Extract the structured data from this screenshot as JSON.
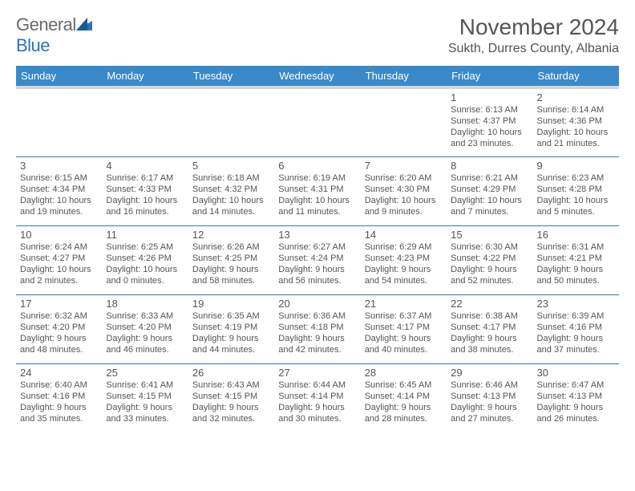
{
  "logo": {
    "word1": "General",
    "word2": "Blue"
  },
  "title": "November 2024",
  "location": "Sukth, Durres County, Albania",
  "day_headers": [
    "Sunday",
    "Monday",
    "Tuesday",
    "Wednesday",
    "Thursday",
    "Friday",
    "Saturday"
  ],
  "colors": {
    "header_bg": "#3a89c9",
    "header_sep": "#d6d6d6",
    "row_border": "#3a76a8",
    "text": "#555555",
    "logo_gray": "#6a6a6a",
    "logo_blue": "#2d73b8"
  },
  "weeks": [
    [
      {
        "num": "",
        "sunrise": "",
        "sunset": "",
        "daylight": ""
      },
      {
        "num": "",
        "sunrise": "",
        "sunset": "",
        "daylight": ""
      },
      {
        "num": "",
        "sunrise": "",
        "sunset": "",
        "daylight": ""
      },
      {
        "num": "",
        "sunrise": "",
        "sunset": "",
        "daylight": ""
      },
      {
        "num": "",
        "sunrise": "",
        "sunset": "",
        "daylight": ""
      },
      {
        "num": "1",
        "sunrise": "Sunrise: 6:13 AM",
        "sunset": "Sunset: 4:37 PM",
        "daylight": "Daylight: 10 hours and 23 minutes."
      },
      {
        "num": "2",
        "sunrise": "Sunrise: 6:14 AM",
        "sunset": "Sunset: 4:36 PM",
        "daylight": "Daylight: 10 hours and 21 minutes."
      }
    ],
    [
      {
        "num": "3",
        "sunrise": "Sunrise: 6:15 AM",
        "sunset": "Sunset: 4:34 PM",
        "daylight": "Daylight: 10 hours and 19 minutes."
      },
      {
        "num": "4",
        "sunrise": "Sunrise: 6:17 AM",
        "sunset": "Sunset: 4:33 PM",
        "daylight": "Daylight: 10 hours and 16 minutes."
      },
      {
        "num": "5",
        "sunrise": "Sunrise: 6:18 AM",
        "sunset": "Sunset: 4:32 PM",
        "daylight": "Daylight: 10 hours and 14 minutes."
      },
      {
        "num": "6",
        "sunrise": "Sunrise: 6:19 AM",
        "sunset": "Sunset: 4:31 PM",
        "daylight": "Daylight: 10 hours and 11 minutes."
      },
      {
        "num": "7",
        "sunrise": "Sunrise: 6:20 AM",
        "sunset": "Sunset: 4:30 PM",
        "daylight": "Daylight: 10 hours and 9 minutes."
      },
      {
        "num": "8",
        "sunrise": "Sunrise: 6:21 AM",
        "sunset": "Sunset: 4:29 PM",
        "daylight": "Daylight: 10 hours and 7 minutes."
      },
      {
        "num": "9",
        "sunrise": "Sunrise: 6:23 AM",
        "sunset": "Sunset: 4:28 PM",
        "daylight": "Daylight: 10 hours and 5 minutes."
      }
    ],
    [
      {
        "num": "10",
        "sunrise": "Sunrise: 6:24 AM",
        "sunset": "Sunset: 4:27 PM",
        "daylight": "Daylight: 10 hours and 2 minutes."
      },
      {
        "num": "11",
        "sunrise": "Sunrise: 6:25 AM",
        "sunset": "Sunset: 4:26 PM",
        "daylight": "Daylight: 10 hours and 0 minutes."
      },
      {
        "num": "12",
        "sunrise": "Sunrise: 6:26 AM",
        "sunset": "Sunset: 4:25 PM",
        "daylight": "Daylight: 9 hours and 58 minutes."
      },
      {
        "num": "13",
        "sunrise": "Sunrise: 6:27 AM",
        "sunset": "Sunset: 4:24 PM",
        "daylight": "Daylight: 9 hours and 56 minutes."
      },
      {
        "num": "14",
        "sunrise": "Sunrise: 6:29 AM",
        "sunset": "Sunset: 4:23 PM",
        "daylight": "Daylight: 9 hours and 54 minutes."
      },
      {
        "num": "15",
        "sunrise": "Sunrise: 6:30 AM",
        "sunset": "Sunset: 4:22 PM",
        "daylight": "Daylight: 9 hours and 52 minutes."
      },
      {
        "num": "16",
        "sunrise": "Sunrise: 6:31 AM",
        "sunset": "Sunset: 4:21 PM",
        "daylight": "Daylight: 9 hours and 50 minutes."
      }
    ],
    [
      {
        "num": "17",
        "sunrise": "Sunrise: 6:32 AM",
        "sunset": "Sunset: 4:20 PM",
        "daylight": "Daylight: 9 hours and 48 minutes."
      },
      {
        "num": "18",
        "sunrise": "Sunrise: 6:33 AM",
        "sunset": "Sunset: 4:20 PM",
        "daylight": "Daylight: 9 hours and 46 minutes."
      },
      {
        "num": "19",
        "sunrise": "Sunrise: 6:35 AM",
        "sunset": "Sunset: 4:19 PM",
        "daylight": "Daylight: 9 hours and 44 minutes."
      },
      {
        "num": "20",
        "sunrise": "Sunrise: 6:36 AM",
        "sunset": "Sunset: 4:18 PM",
        "daylight": "Daylight: 9 hours and 42 minutes."
      },
      {
        "num": "21",
        "sunrise": "Sunrise: 6:37 AM",
        "sunset": "Sunset: 4:17 PM",
        "daylight": "Daylight: 9 hours and 40 minutes."
      },
      {
        "num": "22",
        "sunrise": "Sunrise: 6:38 AM",
        "sunset": "Sunset: 4:17 PM",
        "daylight": "Daylight: 9 hours and 38 minutes."
      },
      {
        "num": "23",
        "sunrise": "Sunrise: 6:39 AM",
        "sunset": "Sunset: 4:16 PM",
        "daylight": "Daylight: 9 hours and 37 minutes."
      }
    ],
    [
      {
        "num": "24",
        "sunrise": "Sunrise: 6:40 AM",
        "sunset": "Sunset: 4:16 PM",
        "daylight": "Daylight: 9 hours and 35 minutes."
      },
      {
        "num": "25",
        "sunrise": "Sunrise: 6:41 AM",
        "sunset": "Sunset: 4:15 PM",
        "daylight": "Daylight: 9 hours and 33 minutes."
      },
      {
        "num": "26",
        "sunrise": "Sunrise: 6:43 AM",
        "sunset": "Sunset: 4:15 PM",
        "daylight": "Daylight: 9 hours and 32 minutes."
      },
      {
        "num": "27",
        "sunrise": "Sunrise: 6:44 AM",
        "sunset": "Sunset: 4:14 PM",
        "daylight": "Daylight: 9 hours and 30 minutes."
      },
      {
        "num": "28",
        "sunrise": "Sunrise: 6:45 AM",
        "sunset": "Sunset: 4:14 PM",
        "daylight": "Daylight: 9 hours and 28 minutes."
      },
      {
        "num": "29",
        "sunrise": "Sunrise: 6:46 AM",
        "sunset": "Sunset: 4:13 PM",
        "daylight": "Daylight: 9 hours and 27 minutes."
      },
      {
        "num": "30",
        "sunrise": "Sunrise: 6:47 AM",
        "sunset": "Sunset: 4:13 PM",
        "daylight": "Daylight: 9 hours and 26 minutes."
      }
    ]
  ]
}
